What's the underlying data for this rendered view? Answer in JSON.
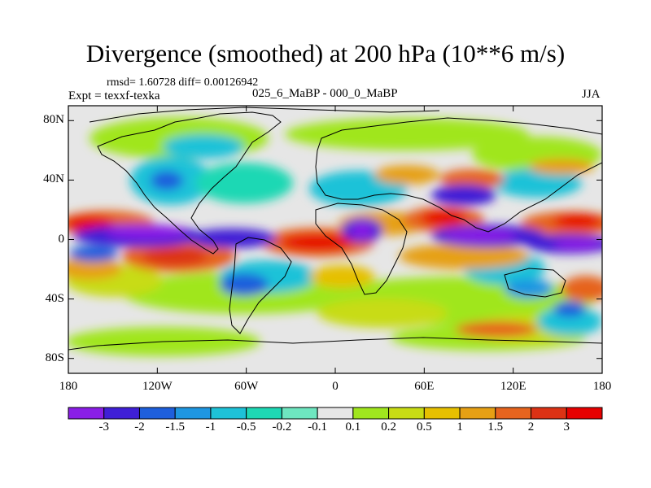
{
  "header": {
    "title": "Divergence (smoothed) at 200 hPa (10**6 m/s)",
    "stats": "rmsd= 1.60728 diff= 0.00126942",
    "experiment": "Expt = texxf-texka",
    "subtitle": "025_6_MaBP - 000_0_MaBP",
    "season": "JJA"
  },
  "axes": {
    "lat_ticks": [
      "80N",
      "40N",
      "0",
      "40S",
      "80S"
    ],
    "lat_values": [
      80,
      40,
      0,
      -40,
      -80
    ],
    "lon_ticks": [
      "180",
      "120W",
      "60W",
      "0",
      "60E",
      "120E",
      "180"
    ],
    "lon_values": [
      -180,
      -120,
      -60,
      0,
      60,
      120,
      180
    ],
    "lat_range": [
      -90,
      90
    ],
    "lon_range": [
      -180,
      180
    ]
  },
  "colorbar": {
    "levels": [
      "-3",
      "-2",
      "-1.5",
      "-1",
      "-0.5",
      "-0.2",
      "-0.1",
      "0.1",
      "0.2",
      "0.5",
      "1",
      "1.5",
      "2",
      "3"
    ],
    "colors": [
      "#8a1ee6",
      "#3f1fd6",
      "#1e5fdc",
      "#1e96e1",
      "#1ec2d8",
      "#1ed8b4",
      "#6ee6c0",
      "#e6e6e6",
      "#a0e61e",
      "#c8dc14",
      "#e6c000",
      "#e6a014",
      "#e6641e",
      "#dc3214",
      "#e60000"
    ]
  }
}
